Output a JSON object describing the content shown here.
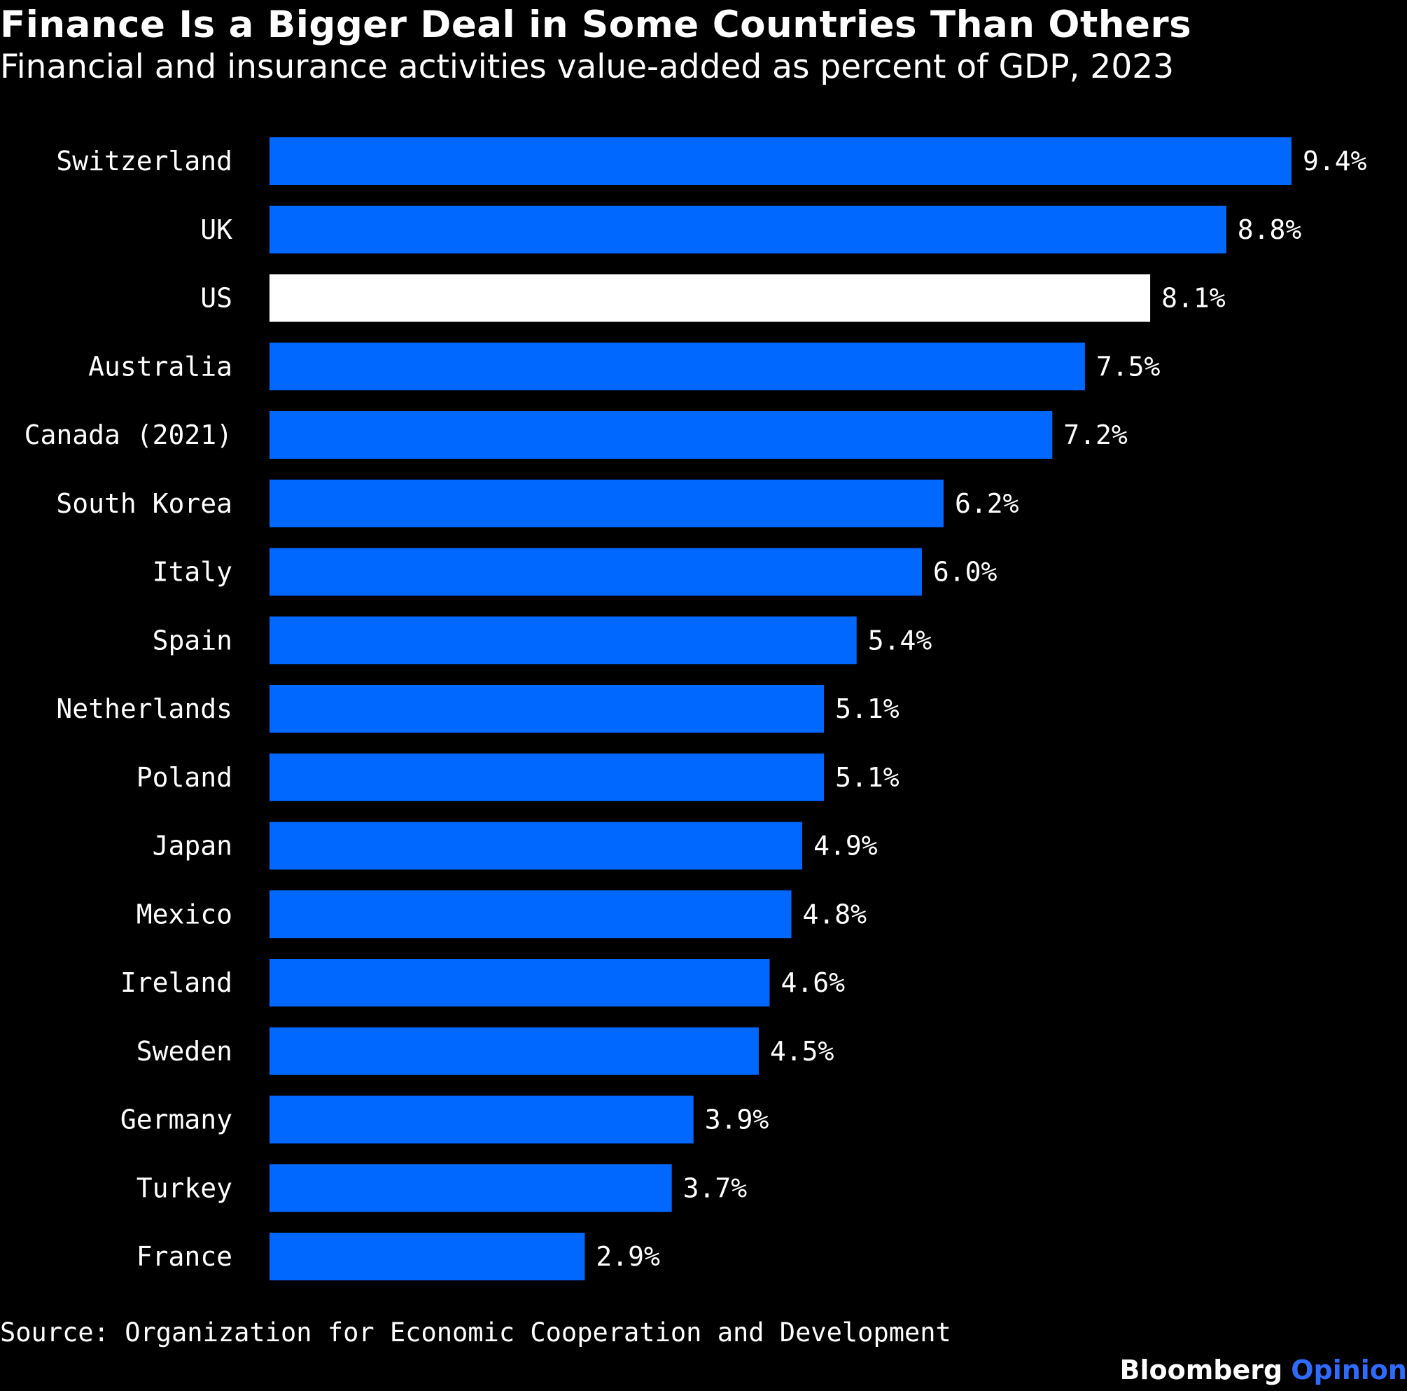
{
  "header": {
    "title": "Finance Is a Bigger Deal in Some Countries Than Others",
    "subtitle": "Financial and insurance activities value-added as percent of GDP, 2023"
  },
  "footer": {
    "source": "Source: Organization for Economic Cooperation and Development",
    "brand_name": "Bloomberg",
    "brand_suffix": "Opinion",
    "brand_suffix_color": "#2f6bff"
  },
  "colors": {
    "background": "#000000",
    "bar": "#0068ff",
    "highlight_bar": "#ffffff",
    "text": "#ffffff"
  },
  "chart_data": {
    "type": "bar",
    "orientation": "horizontal",
    "categories": [
      "Switzerland",
      "UK",
      "US",
      "Australia",
      "Canada (2021)",
      "South Korea",
      "Italy",
      "Spain",
      "Netherlands",
      "Poland",
      "Japan",
      "Mexico",
      "Ireland",
      "Sweden",
      "Germany",
      "Turkey",
      "France"
    ],
    "values": [
      9.4,
      8.8,
      8.1,
      7.5,
      7.2,
      6.2,
      6.0,
      5.4,
      5.1,
      5.1,
      4.9,
      4.8,
      4.6,
      4.5,
      3.9,
      3.7,
      2.9
    ],
    "data_labels": [
      "9.4%",
      "8.8%",
      "8.1%",
      "7.5%",
      "7.2%",
      "6.2%",
      "6.0%",
      "5.4%",
      "5.1%",
      "5.1%",
      "4.9%",
      "4.8%",
      "4.6%",
      "4.5%",
      "3.9%",
      "3.7%",
      "2.9%"
    ],
    "highlight": "US",
    "xlim": [
      0,
      9.4
    ],
    "grid": false,
    "legend": "none"
  }
}
